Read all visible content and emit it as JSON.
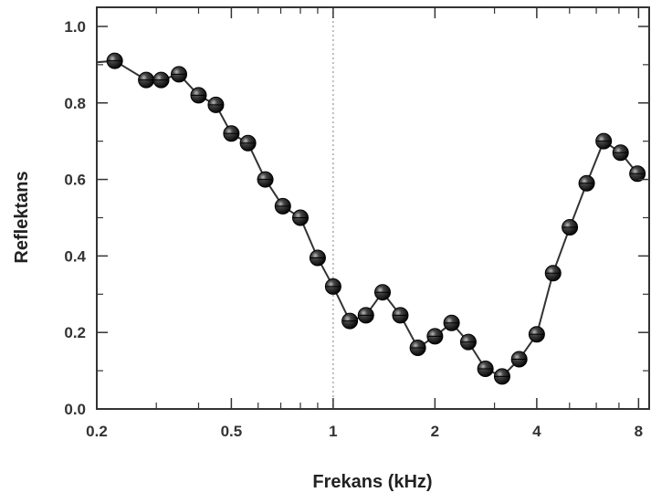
{
  "chart_data": {
    "type": "line",
    "xlabel": "Frekans (kHz)",
    "ylabel": "Reflektans",
    "x_scale": "log",
    "xlim": [
      0.2,
      8.6
    ],
    "ylim": [
      0.0,
      1.05
    ],
    "x_ticks": [
      0.2,
      0.5,
      1,
      2,
      4,
      8
    ],
    "x_tick_labels": [
      "0.2",
      "0.5",
      "1",
      "2",
      "4",
      "8"
    ],
    "y_ticks": [
      0.0,
      0.2,
      0.4,
      0.6,
      0.8,
      1.0
    ],
    "y_tick_labels": [
      "0.0",
      "0.2",
      "0.4",
      "0.6",
      "0.8",
      "1.0"
    ],
    "reference_line_x": 1,
    "grid": false,
    "colors": {
      "marker": "#1a1a1a",
      "line": "#333333",
      "frame": "#333333",
      "reference": "#aaaaaa"
    },
    "x": [
      0.16,
      0.226,
      0.28,
      0.31,
      0.35,
      0.4,
      0.45,
      0.5,
      0.56,
      0.63,
      0.71,
      0.8,
      0.9,
      1.0,
      1.12,
      1.25,
      1.4,
      1.58,
      1.78,
      2.0,
      2.24,
      2.51,
      2.82,
      3.16,
      3.55,
      4.0,
      4.47,
      5.01,
      5.62,
      6.31,
      7.08,
      7.94
    ],
    "y": [
      0.9,
      0.91,
      0.86,
      0.86,
      0.875,
      0.82,
      0.795,
      0.72,
      0.695,
      0.6,
      0.53,
      0.5,
      0.395,
      0.32,
      0.23,
      0.245,
      0.305,
      0.245,
      0.16,
      0.19,
      0.225,
      0.175,
      0.105,
      0.085,
      0.13,
      0.195,
      0.355,
      0.475,
      0.59,
      0.7,
      0.67,
      0.615
    ]
  }
}
